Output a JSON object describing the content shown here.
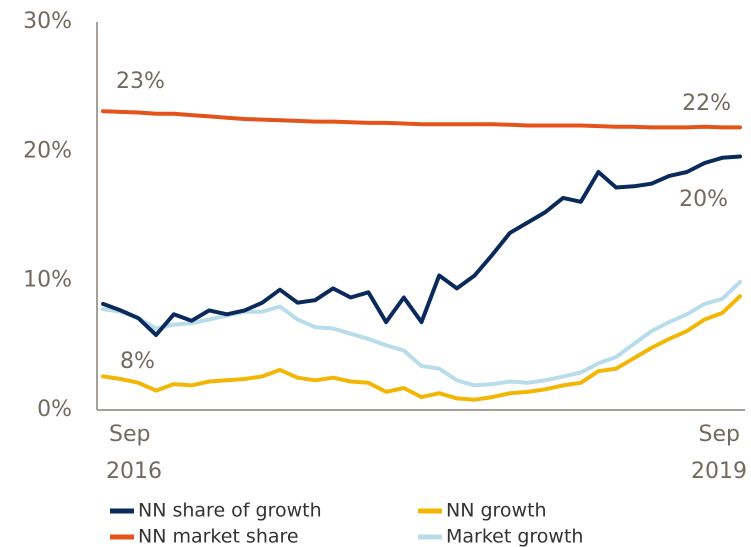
{
  "chart_data": {
    "type": "line",
    "categories": [
      "Sep\n2016",
      null,
      null,
      null,
      null,
      null,
      null,
      null,
      null,
      null,
      null,
      null,
      null,
      null,
      null,
      null,
      null,
      null,
      null,
      null,
      null,
      null,
      null,
      null,
      null,
      null,
      null,
      null,
      null,
      null,
      null,
      null,
      null,
      null,
      null,
      null,
      "Sep\n2019"
    ],
    "series": [
      {
        "name": "NN share of growth",
        "color": "#0b2a5c",
        "values": [
          8.2,
          7.7,
          7.1,
          5.8,
          7.4,
          6.9,
          7.7,
          7.4,
          7.7,
          8.3,
          9.3,
          8.3,
          8.5,
          9.4,
          8.7,
          9.1,
          6.8,
          8.7,
          6.8,
          10.4,
          9.4,
          10.4,
          12.0,
          13.7,
          14.5,
          15.3,
          16.4,
          16.1,
          18.4,
          17.2,
          17.3,
          17.5,
          18.1,
          18.4,
          19.1,
          19.5,
          19.6
        ]
      },
      {
        "name": "NN growth",
        "color": "#f2b705",
        "values": [
          2.6,
          2.4,
          2.1,
          1.5,
          2.0,
          1.9,
          2.2,
          2.3,
          2.4,
          2.6,
          3.1,
          2.5,
          2.3,
          2.5,
          2.2,
          2.1,
          1.4,
          1.7,
          1.0,
          1.3,
          0.9,
          0.8,
          1.0,
          1.3,
          1.4,
          1.6,
          1.9,
          2.1,
          3.0,
          3.2,
          4.0,
          4.8,
          5.5,
          6.1,
          7.0,
          7.5,
          8.8
        ]
      },
      {
        "name": "NN market share",
        "color": "#e4531a",
        "values": [
          23.1,
          23.05,
          23.0,
          22.9,
          22.9,
          22.8,
          22.7,
          22.6,
          22.5,
          22.45,
          22.4,
          22.35,
          22.3,
          22.3,
          22.25,
          22.2,
          22.2,
          22.15,
          22.1,
          22.1,
          22.1,
          22.1,
          22.1,
          22.05,
          22.0,
          22.0,
          22.0,
          22.0,
          21.95,
          21.9,
          21.9,
          21.85,
          21.85,
          21.85,
          21.9,
          21.85,
          21.85
        ]
      },
      {
        "name": "Market growth",
        "color": "#b9dcea",
        "values": [
          7.8,
          7.6,
          7.1,
          6.3,
          6.6,
          6.7,
          7.0,
          7.3,
          7.6,
          7.6,
          8.0,
          7.0,
          6.4,
          6.3,
          5.9,
          5.5,
          5.0,
          4.6,
          3.4,
          3.2,
          2.3,
          1.9,
          2.0,
          2.2,
          2.1,
          2.3,
          2.6,
          2.9,
          3.6,
          4.1,
          5.1,
          6.1,
          6.8,
          7.4,
          8.2,
          8.6,
          9.9
        ]
      }
    ],
    "ylim": [
      0,
      30
    ],
    "yticks": [
      {
        "value": 0,
        "label": "0%"
      },
      {
        "value": 10,
        "label": "10%"
      },
      {
        "value": 20,
        "label": "20%"
      },
      {
        "value": 30,
        "label": "30%"
      }
    ],
    "annotations": [
      "23%",
      "22%",
      "20%",
      "8%"
    ],
    "grid": false
  }
}
